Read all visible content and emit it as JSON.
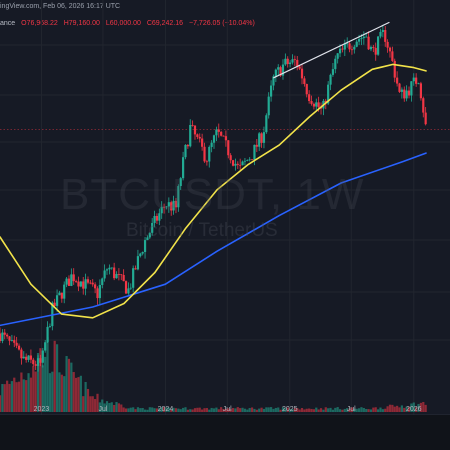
{
  "header": {
    "line1": "ingView.com, Feb 06, 2026 16:17 UTC",
    "venue": "ance",
    "open": "O76,968.22",
    "high": "H79,160.00",
    "low": "L60,000.00",
    "close": "C69,242.16",
    "change": "−7,726.05 (−10.04%)"
  },
  "watermark": {
    "symbol": "BTCUSDT, 1W",
    "name": "Bitcoin / TetherUS"
  },
  "colors": {
    "background": "#161a25",
    "up": "#22ab94",
    "down": "#f23645",
    "ma_slow": "#2962ff",
    "ma_fast": "#f2e34a",
    "trendline": "#e0e3eb",
    "grid": "#22262f"
  },
  "chart_data": {
    "type": "candlestick",
    "timeframe": "1W",
    "x_tick_labels": [
      "2023",
      "Jul",
      "2024",
      "Jul",
      "2025",
      "Jul",
      "2026"
    ],
    "x_ticks": [
      "2023-01-01",
      "2023-07-01",
      "2024-01-01",
      "2024-07-01",
      "2025-01-01",
      "2025-07-01",
      "2026-01-01"
    ],
    "ylim": [
      14000,
      135000
    ],
    "y_scale": "log",
    "grid": true,
    "price_path": [
      {
        "date": "2022-09-01",
        "close": 20000
      },
      {
        "date": "2022-11-10",
        "close": 17000
      },
      {
        "date": "2023-01-01",
        "close": 16500
      },
      {
        "date": "2023-02-01",
        "close": 23000
      },
      {
        "date": "2023-04-01",
        "close": 28500
      },
      {
        "date": "2023-06-15",
        "close": 25500
      },
      {
        "date": "2023-07-15",
        "close": 30000
      },
      {
        "date": "2023-09-15",
        "close": 26000
      },
      {
        "date": "2023-11-01",
        "close": 35000
      },
      {
        "date": "2024-01-01",
        "close": 44000
      },
      {
        "date": "2024-02-01",
        "close": 43000
      },
      {
        "date": "2024-03-14",
        "close": 70000
      },
      {
        "date": "2024-05-01",
        "close": 58000
      },
      {
        "date": "2024-06-01",
        "close": 68000
      },
      {
        "date": "2024-08-05",
        "close": 54000
      },
      {
        "date": "2024-09-15",
        "close": 60000
      },
      {
        "date": "2024-10-15",
        "close": 68000
      },
      {
        "date": "2024-11-15",
        "close": 95000
      },
      {
        "date": "2024-12-15",
        "close": 103000
      },
      {
        "date": "2025-01-20",
        "close": 105000
      },
      {
        "date": "2025-02-25",
        "close": 86000
      },
      {
        "date": "2025-04-07",
        "close": 77000
      },
      {
        "date": "2025-05-20",
        "close": 108000
      },
      {
        "date": "2025-07-14",
        "close": 120000
      },
      {
        "date": "2025-08-14",
        "close": 123000
      },
      {
        "date": "2025-09-01",
        "close": 110000
      },
      {
        "date": "2025-10-06",
        "close": 125000
      },
      {
        "date": "2025-11-21",
        "close": 85000
      },
      {
        "date": "2025-12-15",
        "close": 88000
      },
      {
        "date": "2026-01-15",
        "close": 95000
      },
      {
        "date": "2026-02-06",
        "close": 69242
      }
    ],
    "ma_fast": [
      {
        "date": "2022-09-01",
        "value": 36000
      },
      {
        "date": "2022-12-01",
        "value": 27000
      },
      {
        "date": "2023-03-01",
        "value": 22500
      },
      {
        "date": "2023-06-01",
        "value": 22000
      },
      {
        "date": "2023-09-01",
        "value": 24000
      },
      {
        "date": "2023-12-01",
        "value": 29000
      },
      {
        "date": "2024-03-01",
        "value": 38000
      },
      {
        "date": "2024-06-01",
        "value": 48000
      },
      {
        "date": "2024-09-01",
        "value": 56000
      },
      {
        "date": "2024-12-01",
        "value": 63000
      },
      {
        "date": "2025-03-01",
        "value": 75000
      },
      {
        "date": "2025-06-01",
        "value": 88000
      },
      {
        "date": "2025-09-01",
        "value": 100000
      },
      {
        "date": "2025-11-01",
        "value": 103000
      },
      {
        "date": "2026-01-01",
        "value": 101000
      },
      {
        "date": "2026-02-06",
        "value": 99000
      }
    ],
    "ma_slow": [
      {
        "date": "2022-09-01",
        "value": 21000
      },
      {
        "date": "2023-06-01",
        "value": 23500
      },
      {
        "date": "2024-01-01",
        "value": 27000
      },
      {
        "date": "2024-06-01",
        "value": 33000
      },
      {
        "date": "2024-12-01",
        "value": 41000
      },
      {
        "date": "2025-06-01",
        "value": 50000
      },
      {
        "date": "2025-12-01",
        "value": 57000
      },
      {
        "date": "2026-02-06",
        "value": 60000
      }
    ],
    "trendline": [
      {
        "date": "2024-11-15",
        "value": 95000
      },
      {
        "date": "2025-10-20",
        "value": 133000
      }
    ],
    "volume_levels": [
      {
        "date": "2022-09-01",
        "level": 0.3
      },
      {
        "date": "2022-11-10",
        "level": 0.55
      },
      {
        "date": "2023-01-15",
        "level": 0.85
      },
      {
        "date": "2023-03-15",
        "level": 0.6
      },
      {
        "date": "2023-06-01",
        "level": 0.2
      },
      {
        "date": "2023-10-01",
        "level": 0.05
      },
      {
        "date": "2025-09-01",
        "level": 0.05
      },
      {
        "date": "2026-02-06",
        "level": 0.12
      }
    ]
  }
}
